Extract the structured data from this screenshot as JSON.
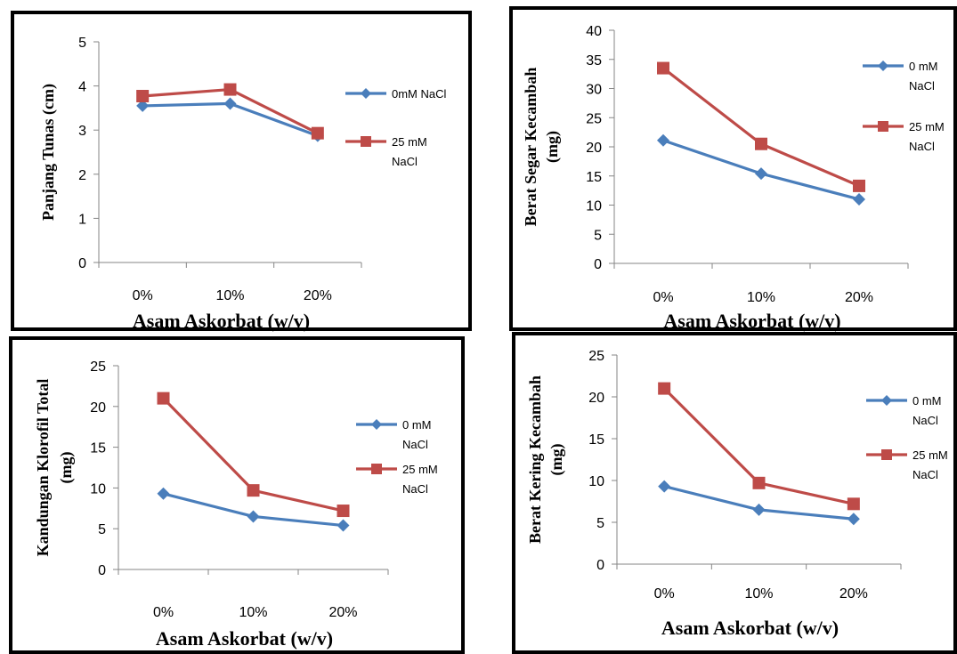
{
  "colors": {
    "series_blue": "#4A7EBB",
    "series_red": "#BE4B48",
    "axis": "#868686",
    "frame": "#000000"
  },
  "chart_data": [
    {
      "type": "line",
      "categories": [
        "0%",
        "10%",
        "20%"
      ],
      "xlabel": "Asam Askorbat (w/v)",
      "ylabel_lines": [
        "Panjang Tunas  (cm)"
      ],
      "ylim": [
        0,
        5
      ],
      "yticks": [
        0,
        1,
        2,
        3,
        4,
        5
      ],
      "grid": false,
      "legend_position": "right",
      "series": [
        {
          "name_lines": [
            "0mM NaCl"
          ],
          "marker": "diamond",
          "color": "#4A7EBB",
          "values": [
            3.55,
            3.6,
            2.87
          ]
        },
        {
          "name_lines": [
            "25 mM",
            "NaCl"
          ],
          "marker": "square",
          "color": "#BE4B48",
          "values": [
            3.77,
            3.92,
            2.93
          ]
        }
      ]
    },
    {
      "type": "line",
      "categories": [
        "0%",
        "10%",
        "20%"
      ],
      "xlabel": "Asam Askorbat (w/v)",
      "ylabel_lines": [
        "Berat Segar Kecambah",
        "(mg)"
      ],
      "ylim": [
        0,
        40
      ],
      "yticks": [
        0,
        5,
        10,
        15,
        20,
        25,
        30,
        35,
        40
      ],
      "grid": false,
      "legend_position": "right",
      "series": [
        {
          "name_lines": [
            "0 mM",
            "NaCl"
          ],
          "marker": "diamond",
          "color": "#4A7EBB",
          "values": [
            21.1,
            15.4,
            11.0
          ]
        },
        {
          "name_lines": [
            "25 mM",
            "NaCl"
          ],
          "marker": "square",
          "color": "#BE4B48",
          "values": [
            33.5,
            20.5,
            13.3
          ]
        }
      ]
    },
    {
      "type": "line",
      "categories": [
        "0%",
        "10%",
        "20%"
      ],
      "xlabel": "Asam Askorbat (w/v)",
      "ylabel_lines": [
        "Kandungan Klorofil Total",
        "(mg)"
      ],
      "ylim": [
        0,
        25
      ],
      "yticks": [
        0,
        5,
        10,
        15,
        20,
        25
      ],
      "grid": false,
      "legend_position": "right",
      "series": [
        {
          "name_lines": [
            "0 mM",
            "NaCl"
          ],
          "marker": "diamond",
          "color": "#4A7EBB",
          "values": [
            9.3,
            6.5,
            5.4
          ]
        },
        {
          "name_lines": [
            "25 mM",
            "NaCl"
          ],
          "marker": "square",
          "color": "#BE4B48",
          "values": [
            21.0,
            9.7,
            7.2
          ]
        }
      ]
    },
    {
      "type": "line",
      "categories": [
        "0%",
        "10%",
        "20%"
      ],
      "xlabel": "Asam Askorbat (w/v)",
      "ylabel_lines": [
        "Berat Kering Kecambah",
        "(mg)"
      ],
      "ylim": [
        0,
        25
      ],
      "yticks": [
        0,
        5,
        10,
        15,
        20,
        25
      ],
      "grid": false,
      "legend_position": "right",
      "series": [
        {
          "name_lines": [
            "0 mM",
            "NaCl"
          ],
          "marker": "diamond",
          "color": "#4A7EBB",
          "values": [
            9.3,
            6.5,
            5.4
          ]
        },
        {
          "name_lines": [
            "25 mM",
            "NaCl"
          ],
          "marker": "square",
          "color": "#BE4B48",
          "values": [
            21.0,
            9.7,
            7.2
          ]
        }
      ]
    }
  ]
}
